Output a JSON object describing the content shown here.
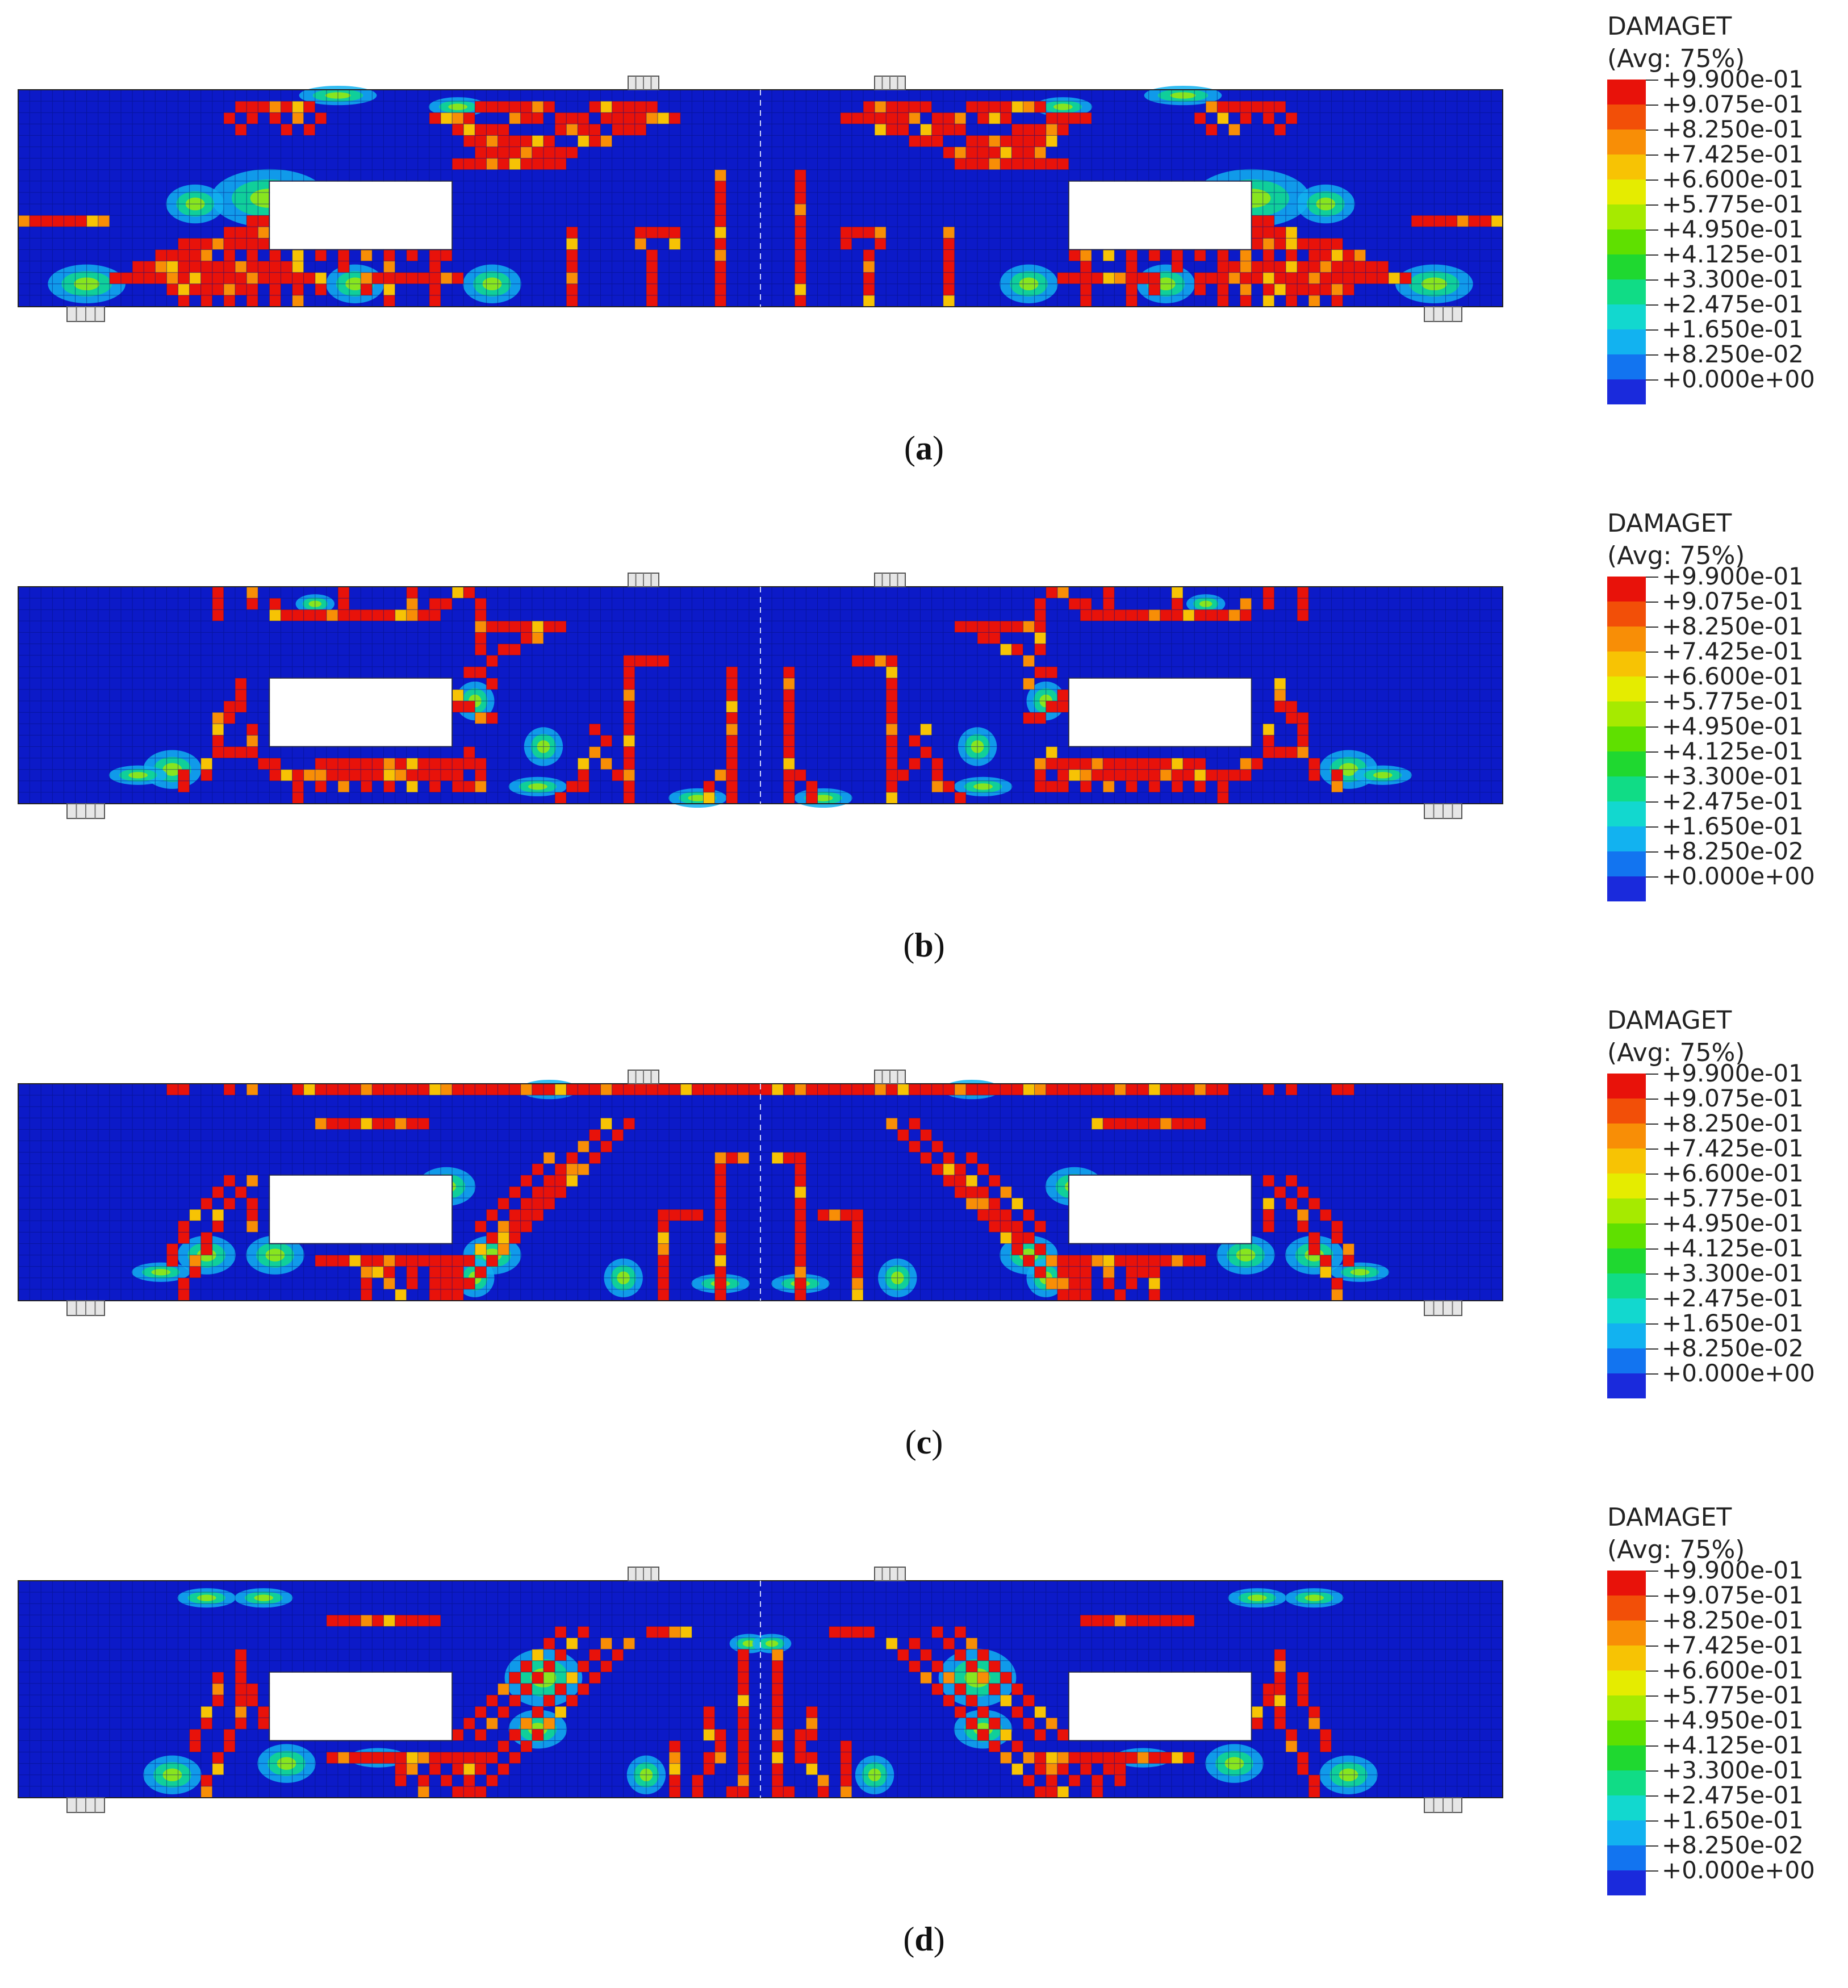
{
  "legend": {
    "title_line1": "DAMAGET",
    "title_line2": "(Avg: 75%)",
    "levels": [
      "+9.900e-01",
      "+9.075e-01",
      "+8.250e-01",
      "+7.425e-01",
      "+6.600e-01",
      "+5.775e-01",
      "+4.950e-01",
      "+4.125e-01",
      "+3.300e-01",
      "+2.475e-01",
      "+1.650e-01",
      "+8.250e-02",
      "+0.000e+00"
    ],
    "colors": [
      "#e8120a",
      "#f24f08",
      "#f88e06",
      "#f7c304",
      "#e5ec00",
      "#a6ea00",
      "#5fe000",
      "#1fd830",
      "#10dc86",
      "#12d8cf",
      "#12b2f0",
      "#1274f0",
      "#1a2adc"
    ]
  },
  "colors": {
    "beam_background": "#0c1ac8",
    "mesh_line": "#06107a",
    "support": "#e6e6e6",
    "crack": "#e8120a"
  },
  "figures": [
    {
      "caption": "a"
    },
    {
      "caption": "b"
    },
    {
      "caption": "c"
    },
    {
      "caption": "d"
    }
  ]
}
